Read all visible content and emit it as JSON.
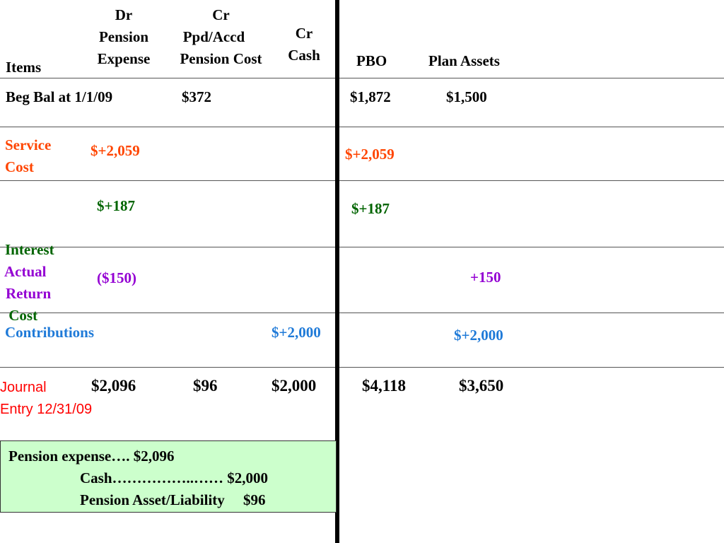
{
  "colors": {
    "service": "#ff4500",
    "interest": "#006400",
    "actual_return": "#9400d3",
    "contributions": "#1f7ad8",
    "journal_label": "#ff0000",
    "entry_box_bg": "#ccffcc"
  },
  "headers": {
    "items": "Items",
    "dr_line1": "Dr",
    "dr_line2": "Pension",
    "dr_line3": "Expense",
    "cr1_line1": "Cr",
    "cr1_line2": "Ppd/Accd",
    "cr1_line3": "Pension Cost",
    "cr2_line1": "Cr",
    "cr2_line2": "Cash",
    "pbo": "PBO",
    "plan_assets": "Plan Assets"
  },
  "rows": {
    "beg_bal": {
      "label": "Beg Bal at 1/1/09",
      "ppd_accd": "$372",
      "pbo": "$1,872",
      "plan_assets": "$1,500"
    },
    "service_cost": {
      "label_line1": "Service",
      "label_line2": "Cost",
      "dr_pension_expense": "$+2,059",
      "pbo": "$+2,059"
    },
    "interest_cost": {
      "label_line1": "Interest",
      "label_line2": " Cost",
      "dr_pension_expense": "$+187",
      "pbo": "$+187"
    },
    "actual_return": {
      "label_line1": "Actual",
      "label_line2": "Return",
      "dr_pension_expense": "($150)",
      "plan_assets": "+150"
    },
    "contributions": {
      "label": "Contributions",
      "cash": "$+2,000",
      "plan_assets": "$+2,000"
    },
    "journal_entry": {
      "label_line1": "Journal",
      "label_line2": "Entry 12/31/09",
      "dr_pension_expense": "$2,096",
      "ppd_accd": "$96",
      "cash": "$2,000",
      "pbo": "$4,118",
      "plan_assets": "$3,650"
    }
  },
  "entry_box": {
    "line1": "Pension expense…. $2,096",
    "line2": "Cash……………..…… $2,000",
    "line3": "Pension Asset/Liability     $96"
  }
}
